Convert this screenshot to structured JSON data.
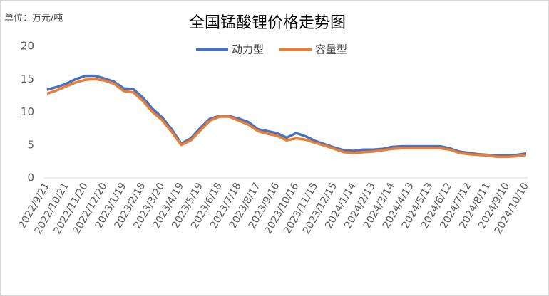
{
  "chart_data": {
    "type": "line",
    "title": "全国锰酸锂价格走势图",
    "subtitle": "单位：万元/吨",
    "categories": [
      "2022/9/21",
      null,
      "2022/10/21",
      null,
      "2022/11/20",
      null,
      "2022/12/20",
      null,
      "2023/1/19",
      null,
      "2023/2/18",
      null,
      "2023/3/20",
      null,
      "2023/4/19",
      null,
      "2023/5/19",
      null,
      "2023/6/18",
      null,
      "2023/7/18",
      null,
      "2023/8/17",
      null,
      "2023/9/16",
      null,
      "2023/10/16",
      null,
      "2023/11/15",
      null,
      "2023/12/15",
      null,
      "2024/1/14",
      null,
      "2024/2/13",
      null,
      "2024/3/14",
      null,
      "2024/4/13",
      null,
      "2024/5/13",
      null,
      "2024/6/12",
      null,
      "2024/7/12",
      null,
      "2024/8/11",
      null,
      "2024/9/10",
      null,
      "2024/10/10"
    ],
    "series": [
      {
        "name": "动力型",
        "color": "#4472c4",
        "values": [
          13.4,
          13.8,
          14.3,
          15.0,
          15.5,
          15.5,
          15.1,
          14.6,
          13.6,
          13.5,
          12.2,
          10.5,
          9.2,
          7.4,
          5.2,
          6.0,
          7.6,
          9.0,
          9.4,
          9.4,
          9.0,
          8.5,
          7.4,
          7.1,
          6.8,
          6.1,
          6.8,
          6.3,
          5.6,
          5.1,
          4.6,
          4.2,
          4.1,
          4.3,
          4.3,
          4.4,
          4.7,
          4.8,
          4.8,
          4.8,
          4.8,
          4.8,
          4.5,
          4.0,
          3.8,
          3.6,
          3.5,
          3.4,
          3.4,
          3.5,
          3.7
        ]
      },
      {
        "name": "容量型",
        "color": "#ed7d31",
        "values": [
          12.8,
          13.3,
          13.9,
          14.5,
          14.9,
          15.0,
          14.8,
          14.3,
          13.2,
          13.0,
          11.7,
          10.0,
          8.8,
          7.0,
          5.0,
          5.7,
          7.2,
          8.7,
          9.3,
          9.3,
          8.7,
          8.1,
          7.1,
          6.7,
          6.4,
          5.7,
          6.0,
          5.8,
          5.3,
          4.9,
          4.4,
          3.9,
          3.8,
          3.9,
          4.0,
          4.2,
          4.4,
          4.5,
          4.5,
          4.5,
          4.5,
          4.5,
          4.3,
          3.8,
          3.6,
          3.5,
          3.4,
          3.2,
          3.2,
          3.3,
          3.5
        ]
      }
    ],
    "ylim": [
      0,
      20
    ],
    "yticks": [
      0,
      5,
      10,
      15,
      20
    ],
    "grid": false,
    "legend": "top"
  }
}
